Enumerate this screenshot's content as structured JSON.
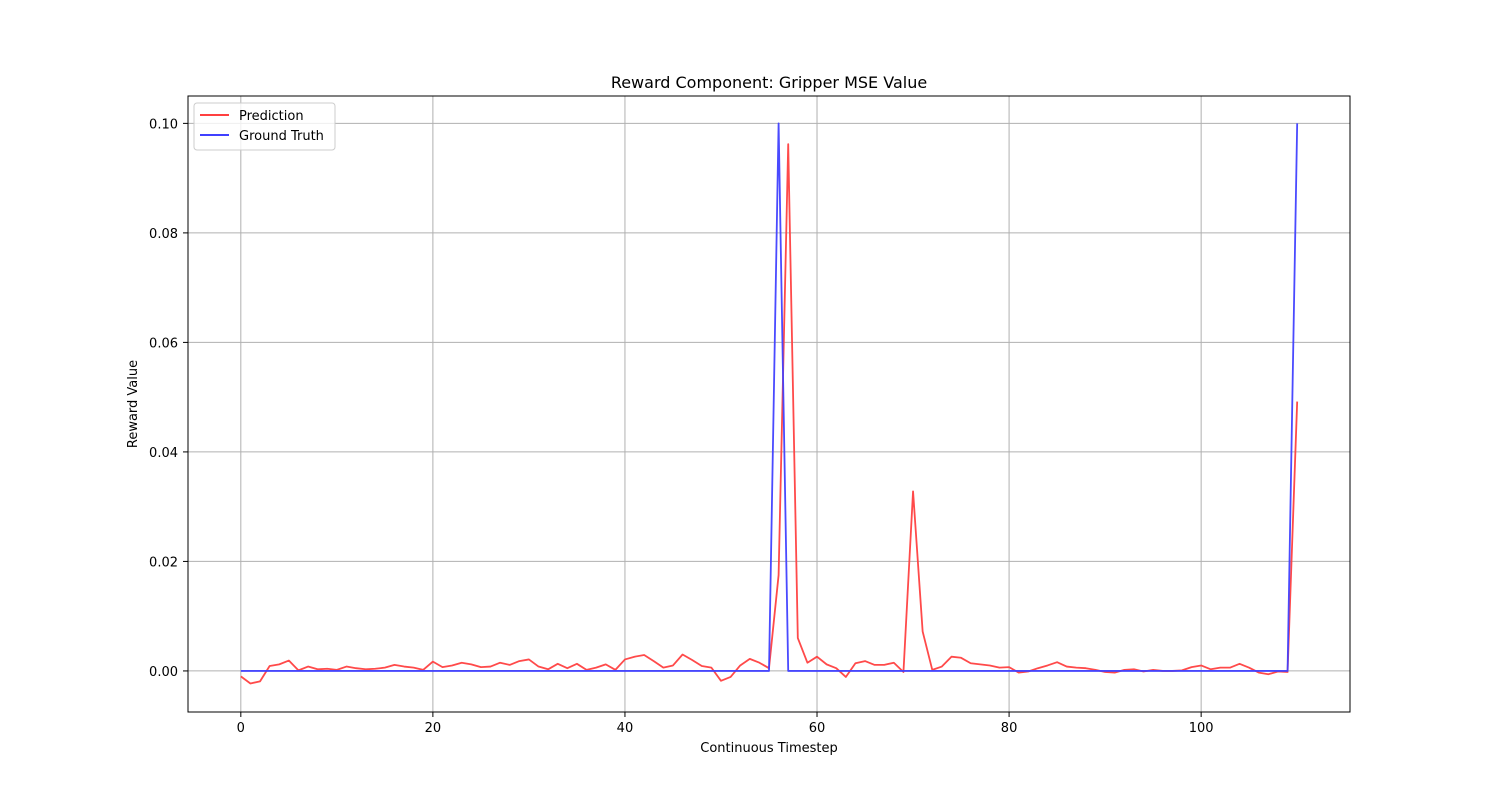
{
  "chart_data": {
    "type": "line",
    "title": "Reward Component: Gripper MSE Value",
    "xlabel": "Continuous Timestep",
    "ylabel": "Reward Value",
    "xlim": [
      -5.5,
      115.5
    ],
    "ylim": [
      -0.0075,
      0.105
    ],
    "xticks": [
      0,
      20,
      40,
      60,
      80,
      100
    ],
    "xtick_labels": [
      "0",
      "20",
      "40",
      "60",
      "80",
      "100"
    ],
    "yticks": [
      0.0,
      0.02,
      0.04,
      0.06,
      0.08,
      0.1
    ],
    "ytick_labels": [
      "0.00",
      "0.02",
      "0.04",
      "0.06",
      "0.08",
      "0.10"
    ],
    "grid": true,
    "legend": "upper-left",
    "series": [
      {
        "name": "Prediction",
        "color": "#ff4040",
        "x": [
          0,
          1,
          2,
          3,
          4,
          5,
          6,
          7,
          8,
          9,
          10,
          11,
          12,
          13,
          14,
          15,
          16,
          17,
          18,
          19,
          20,
          21,
          22,
          23,
          24,
          25,
          26,
          27,
          28,
          29,
          30,
          31,
          32,
          33,
          34,
          35,
          36,
          37,
          38,
          39,
          40,
          41,
          42,
          43,
          44,
          45,
          46,
          47,
          48,
          49,
          50,
          51,
          52,
          53,
          54,
          55,
          56,
          57,
          58,
          59,
          60,
          61,
          62,
          63,
          64,
          65,
          66,
          67,
          68,
          69,
          70,
          71,
          72,
          73,
          74,
          75,
          76,
          77,
          78,
          79,
          80,
          81,
          82,
          83,
          84,
          85,
          86,
          87,
          88,
          89,
          90,
          91,
          92,
          93,
          94,
          95,
          96,
          97,
          98,
          99,
          100,
          101,
          102,
          103,
          104,
          105,
          106,
          107,
          108,
          109,
          110
        ],
        "values": [
          -0.001,
          -0.0023,
          -0.0019,
          0.0009,
          0.0012,
          0.0019,
          0.0001,
          0.0008,
          0.0003,
          0.0004,
          0.0002,
          0.0008,
          0.0005,
          0.0003,
          0.0004,
          0.0006,
          0.0011,
          0.0008,
          0.0006,
          0.0002,
          0.0017,
          0.0007,
          0.001,
          0.0015,
          0.0012,
          0.0007,
          0.0008,
          0.0015,
          0.0011,
          0.0018,
          0.0021,
          0.0008,
          0.0003,
          0.0013,
          0.0005,
          0.0013,
          0.0002,
          0.0006,
          0.0012,
          0.0002,
          0.0021,
          0.0026,
          0.0029,
          0.0018,
          0.0006,
          0.001,
          0.003,
          0.002,
          0.0009,
          0.0006,
          -0.0018,
          -0.0011,
          0.001,
          0.0022,
          0.0015,
          0.0005,
          0.0175,
          0.0962,
          0.006,
          0.0015,
          0.0026,
          0.0012,
          0.0005,
          -0.0011,
          0.0014,
          0.0018,
          0.0011,
          0.0011,
          0.0015,
          -0.0002,
          0.0328,
          0.0072,
          0.0002,
          0.0008,
          0.0026,
          0.0024,
          0.0014,
          0.0012,
          0.001,
          0.0006,
          0.0007,
          -0.0003,
          -0.0001,
          0.0005,
          0.001,
          0.0016,
          0.0008,
          0.0006,
          0.0005,
          0.0002,
          -0.0002,
          -0.0003,
          0.0002,
          0.0003,
          -0.0001,
          0.0002,
          0.0,
          0.0,
          0.0001,
          0.0007,
          0.001,
          0.0003,
          0.0006,
          0.0006,
          0.0013,
          0.0006,
          -0.0003,
          -0.0006,
          -0.0001,
          -0.0002,
          0.0492
        ]
      },
      {
        "name": "Ground Truth",
        "color": "#4040ff",
        "x": [
          0,
          55,
          56,
          57,
          109,
          110
        ],
        "values": [
          0.0,
          0.0,
          0.1,
          0.0,
          0.0,
          0.1
        ]
      }
    ]
  }
}
